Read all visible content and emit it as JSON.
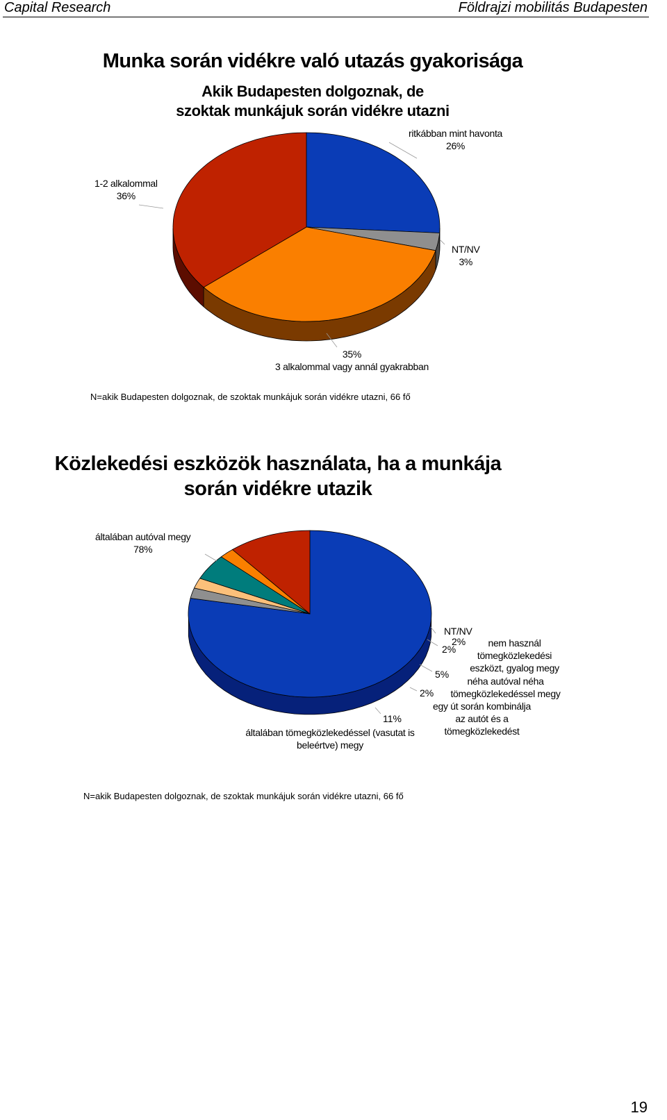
{
  "header": {
    "left": "Capital Research",
    "right": "Földrajzi mobilitás Budapesten"
  },
  "chart1": {
    "title": "Munka során vidékre való utazás gyakorisága",
    "subtitle": "Akik Budapesten dolgoznak, de szoktak munkájuk során vidékre utazni",
    "note": "N=akik Budapesten dolgoznak, de szoktak munkájuk során vidékre utazni, 66 fő"
  },
  "chart2": {
    "title": "Közlekedési eszközök használata, ha a munkája során vidékre utazik",
    "note": "N=akik Budapesten dolgoznak, de szoktak munkájuk során vidékre utazni, 66 fő"
  },
  "page_number": "19",
  "chart_data": [
    {
      "type": "pie",
      "title": "Munka során vidékre való utazás gyakorisága",
      "subtitle": "Akik Budapesten dolgoznak, de szoktak munkájuk során vidékre utazni",
      "slices": [
        {
          "label": "ritkábban mint havonta",
          "value": 26,
          "value_label": "26%",
          "color": "#0a3cb6",
          "side": "#06217a"
        },
        {
          "label": "NT/NV",
          "value": 3,
          "value_label": "3%",
          "color": "#8f8f8f",
          "side": "#4d4d4d"
        },
        {
          "label": "3 alkalommal vagy annál gyakrabban",
          "value": 35,
          "value_label": "35%",
          "color": "#fa7f00",
          "side": "#7a3a00"
        },
        {
          "label": "1-2 alkalommal",
          "value": 36,
          "value_label": "36%",
          "color": "#bf2200",
          "side": "#5c0d00"
        }
      ]
    },
    {
      "type": "pie",
      "title": "Közlekedési eszközök használata, ha a munkája során vidékre utazik",
      "slices": [
        {
          "label": "általában autóval megy",
          "value": 78,
          "value_label": "78%",
          "color": "#0a3cb6",
          "side": "#06217a"
        },
        {
          "label": "NT/NV",
          "value": 2,
          "value_label": "2%",
          "color": "#8f8f8f",
          "side": "#4d4d4d"
        },
        {
          "label": "nem használ tömegközlekedési eszközt, gyalog megy",
          "value": 2,
          "value_label": "2%",
          "color": "#fcc07a",
          "side": "#8a6030"
        },
        {
          "label": "néha autóval néha tömegközlekedéssel megy",
          "value": 5,
          "value_label": "5%",
          "color": "#007c7c",
          "side": "#003a3a"
        },
        {
          "label": "egy út során kombinálja az autót és a tömegközlekedést",
          "value": 2,
          "value_label": "2%",
          "color": "#fa7f00",
          "side": "#7a3a00"
        },
        {
          "label": "általában tömegközlekedéssel (vasutat is beleértve) megy",
          "value": 11,
          "value_label": "11%",
          "color": "#bf2200",
          "side": "#5c0d00"
        }
      ]
    }
  ]
}
